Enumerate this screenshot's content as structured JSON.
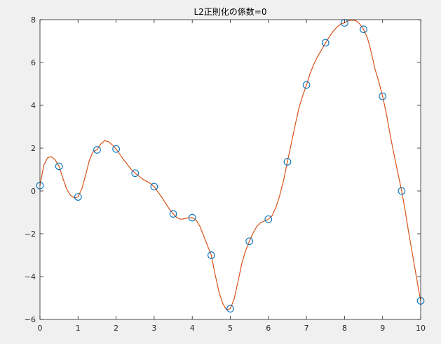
{
  "chart_data": {
    "type": "line",
    "title": "L2正則化の係数=0",
    "xlabel": "",
    "ylabel": "",
    "xlim": [
      0,
      10
    ],
    "ylim": [
      -6,
      8
    ],
    "xticks": [
      0,
      1,
      2,
      3,
      4,
      5,
      6,
      7,
      8,
      9,
      10
    ],
    "yticks": [
      -6,
      -4,
      -2,
      0,
      2,
      4,
      6,
      8
    ],
    "xtick_labels": [
      "0",
      "1",
      "2",
      "3",
      "4",
      "5",
      "6",
      "7",
      "8",
      "9",
      "10"
    ],
    "ytick_labels": [
      "−6",
      "−4",
      "−2",
      "0",
      "2",
      "4",
      "6",
      "8"
    ],
    "grid": false,
    "series": [
      {
        "kind": "scatter",
        "marker": "open-circle",
        "color": "#0072BD",
        "x": [
          0,
          0.5,
          1,
          1.5,
          2,
          2.5,
          3,
          3.5,
          4,
          4.5,
          5,
          5.5,
          6,
          6.5,
          7,
          7.5,
          8,
          8.5,
          9,
          9.5,
          10
        ],
        "y": [
          0.25,
          1.15,
          -0.28,
          1.92,
          1.96,
          0.83,
          0.2,
          -1.07,
          -1.25,
          -3.0,
          -5.5,
          -2.35,
          -1.32,
          1.36,
          4.95,
          6.92,
          7.85,
          7.55,
          4.42,
          0.0,
          -5.13
        ]
      },
      {
        "kind": "line",
        "color": "#D95319",
        "x": [
          0,
          0.1,
          0.2,
          0.3,
          0.4,
          0.5,
          0.6,
          0.7,
          0.8,
          0.9,
          1.0,
          1.1,
          1.2,
          1.3,
          1.4,
          1.5,
          1.6,
          1.7,
          1.8,
          1.9,
          2.0,
          2.2,
          2.4,
          2.5,
          2.7,
          2.9,
          3.0,
          3.2,
          3.4,
          3.5,
          3.6,
          3.7,
          3.8,
          3.9,
          4.0,
          4.1,
          4.2,
          4.3,
          4.4,
          4.5,
          4.6,
          4.7,
          4.8,
          4.9,
          5.0,
          5.1,
          5.2,
          5.3,
          5.4,
          5.5,
          5.6,
          5.7,
          5.8,
          5.9,
          6.0,
          6.1,
          6.2,
          6.3,
          6.4,
          6.5,
          6.6,
          6.7,
          6.8,
          6.9,
          7.0,
          7.1,
          7.2,
          7.3,
          7.4,
          7.5,
          7.6,
          7.7,
          7.8,
          7.9,
          8.0,
          8.1,
          8.2,
          8.3,
          8.4,
          8.5,
          8.6,
          8.7,
          8.8,
          8.9,
          9.0,
          9.1,
          9.2,
          9.3,
          9.4,
          9.5,
          9.6,
          9.7,
          9.8,
          9.9,
          10.0
        ],
        "y": [
          0.25,
          1.2,
          1.55,
          1.6,
          1.45,
          1.15,
          0.6,
          0.1,
          -0.2,
          -0.32,
          -0.28,
          0.1,
          0.75,
          1.45,
          1.85,
          1.92,
          2.2,
          2.35,
          2.3,
          2.15,
          1.96,
          1.45,
          1.0,
          0.83,
          0.55,
          0.35,
          0.2,
          -0.3,
          -0.85,
          -1.07,
          -1.25,
          -1.32,
          -1.3,
          -1.25,
          -1.25,
          -1.35,
          -1.65,
          -2.1,
          -2.55,
          -3.0,
          -3.9,
          -4.7,
          -5.25,
          -5.55,
          -5.5,
          -5.05,
          -4.25,
          -3.4,
          -2.8,
          -2.35,
          -1.95,
          -1.65,
          -1.48,
          -1.4,
          -1.32,
          -1.15,
          -0.75,
          -0.2,
          0.5,
          1.36,
          2.2,
          3.05,
          3.85,
          4.45,
          4.95,
          5.5,
          5.95,
          6.3,
          6.6,
          6.92,
          7.2,
          7.45,
          7.65,
          7.8,
          7.85,
          7.95,
          7.98,
          7.95,
          7.8,
          7.55,
          7.15,
          6.5,
          5.7,
          5.1,
          4.42,
          3.6,
          2.6,
          1.7,
          0.85,
          0.0,
          -1.0,
          -2.1,
          -3.1,
          -4.15,
          -5.13
        ]
      }
    ]
  }
}
